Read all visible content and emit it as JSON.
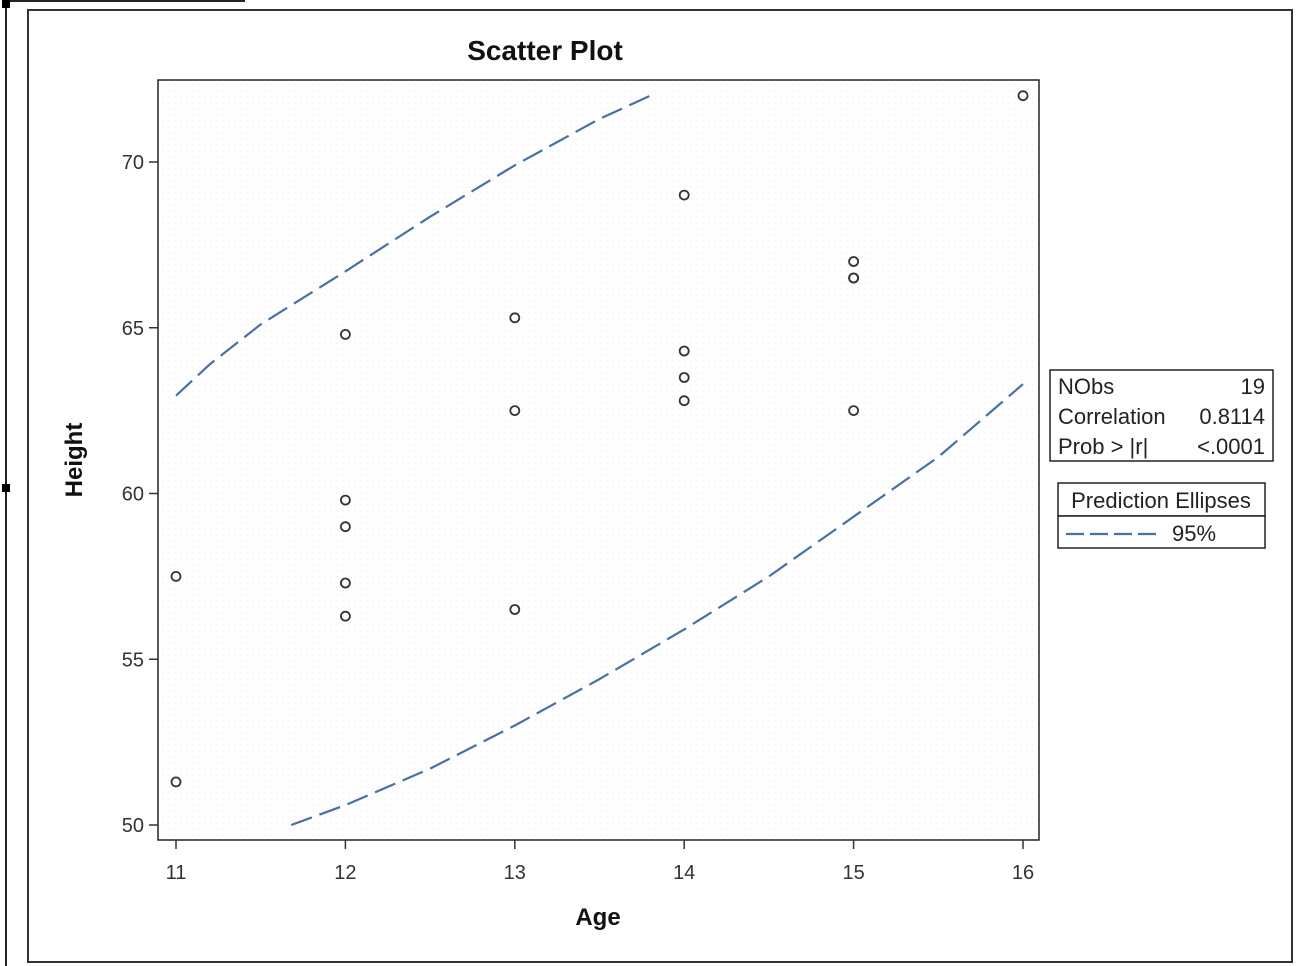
{
  "chart_data": {
    "type": "scatter",
    "title": "Scatter Plot",
    "xlabel": "Age",
    "ylabel": "Height",
    "xlim": [
      11,
      16
    ],
    "ylim": [
      50,
      72
    ],
    "x_ticks": [
      11,
      12,
      13,
      14,
      15,
      16
    ],
    "y_ticks": [
      50,
      55,
      60,
      65,
      70
    ],
    "grid": false,
    "series": [
      {
        "x": [
          11,
          11,
          12,
          12,
          12,
          12,
          12,
          13,
          13,
          13,
          14,
          14,
          14,
          14,
          15,
          15,
          15,
          15,
          16
        ],
        "y": [
          57.5,
          51.3,
          64.8,
          59.8,
          59.0,
          57.3,
          56.3,
          65.3,
          62.5,
          56.5,
          69.0,
          64.3,
          63.5,
          62.8,
          67.0,
          66.5,
          66.5,
          62.5,
          72.0
        ],
        "marker": "circle-open",
        "color": "#333333"
      }
    ],
    "ellipse": {
      "name": "95%",
      "color": "#4a6fa5",
      "style": "dashed",
      "upper_branch": {
        "x": [
          11.0,
          11.2,
          11.5,
          12.0,
          12.5,
          13.0,
          13.5,
          13.8
        ],
        "y": [
          62.95,
          63.9,
          65.1,
          66.7,
          68.35,
          69.9,
          71.3,
          72.0
        ]
      },
      "lower_branch": {
        "x": [
          11.68,
          12.0,
          12.5,
          13.0,
          13.5,
          14.0,
          14.5,
          15.0,
          15.5,
          16.0
        ],
        "y": [
          50.0,
          50.6,
          51.7,
          53.0,
          54.4,
          55.9,
          57.5,
          59.3,
          61.1,
          63.3
        ]
      }
    },
    "legend": {
      "title": "Prediction Ellipses",
      "entries": [
        "95%"
      ],
      "placement": "right"
    },
    "stats": {
      "rows": [
        {
          "label": "NObs",
          "value": "19"
        },
        {
          "label": "Correlation",
          "value": "0.8114"
        },
        {
          "label": "Prob > |r|",
          "value": "<.0001"
        }
      ],
      "placement": "right"
    }
  }
}
